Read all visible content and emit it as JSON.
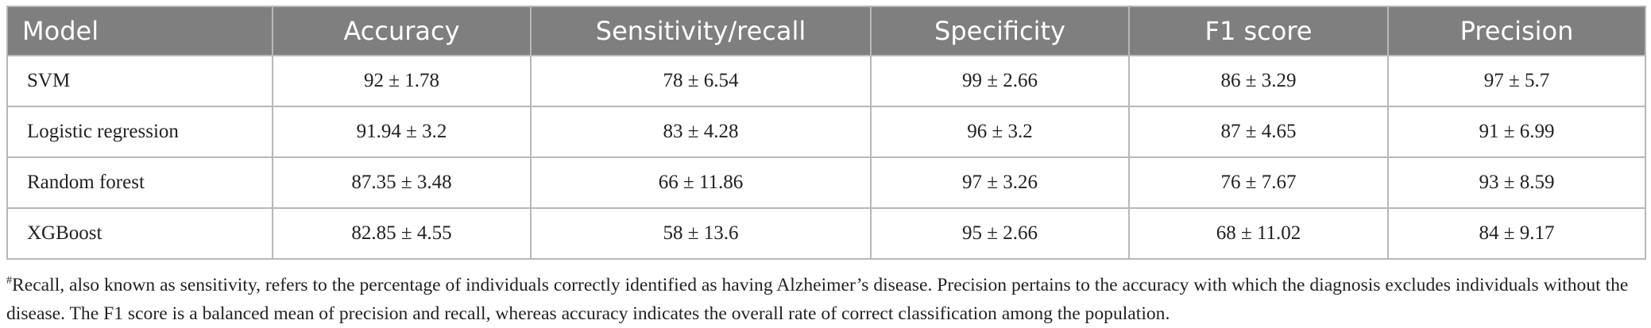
{
  "table": {
    "header": [
      "Model",
      "Accuracy",
      "Sensitivity/recall",
      "Specificity",
      "F1 score",
      "Precision"
    ],
    "rows": [
      [
        "SVM",
        "92 ± 1.78",
        "78 ± 6.54",
        "99 ± 2.66",
        "86 ± 3.29",
        "97 ± 5.7"
      ],
      [
        "Logistic regression",
        "91.94 ± 3.2",
        "83 ± 4.28",
        "96 ± 3.2",
        "87 ± 4.65",
        "91 ± 6.99"
      ],
      [
        "Random forest",
        "87.35 ± 3.48",
        "66 ± 11.86",
        "97 ± 3.26",
        "76 ± 7.67",
        "93 ± 8.59"
      ],
      [
        "XGBoost",
        "82.85 ± 4.55",
        "58 ± 13.6",
        "95 ± 2.66",
        "68 ± 11.02",
        "84 ± 9.17"
      ]
    ]
  },
  "footnote": {
    "marker": "#",
    "text": "Recall, also known as sensitivity, refers to the percentage of individuals correctly identified as having Alzheimer’s disease. Precision pertains to the accuracy with which the diagnosis excludes individuals without the disease. The F1 score is a balanced mean of precision and recall, whereas accuracy indicates the overall rate of correct classification among the population."
  }
}
